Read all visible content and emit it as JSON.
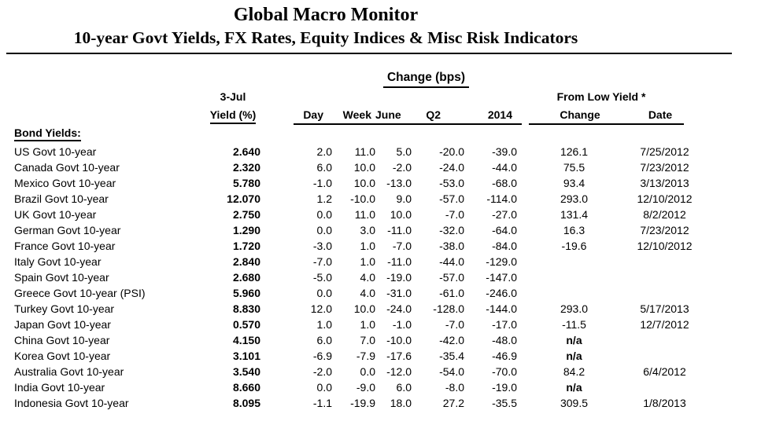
{
  "header": {
    "title": "Global Macro Monitor",
    "subtitle": "10-year Govt Yields, FX Rates, Equity Indices & Misc Risk Indicators"
  },
  "table": {
    "group_headers": {
      "as_of": "3-Jul",
      "change_bps": "Change (bps)",
      "from_low_yield": "From Low Yield *"
    },
    "columns": [
      "Yield (%)",
      "Day",
      "Week",
      "June",
      "Q2",
      "2014",
      "Change",
      "Date"
    ],
    "section_label": "Bond Yields:",
    "rows": [
      [
        "US Govt 10-year",
        "2.640",
        "2.0",
        "11.0",
        "5.0",
        "-20.0",
        "-39.0",
        "126.1",
        "7/25/2012"
      ],
      [
        "Canada Govt 10-year",
        "2.320",
        "6.0",
        "10.0",
        "-2.0",
        "-24.0",
        "-44.0",
        "75.5",
        "7/23/2012"
      ],
      [
        "Mexico Govt 10-year",
        "5.780",
        "-1.0",
        "10.0",
        "-13.0",
        "-53.0",
        "-68.0",
        "93.4",
        "3/13/2013"
      ],
      [
        "Brazil Govt 10-year",
        "12.070",
        "1.2",
        "-10.0",
        "9.0",
        "-57.0",
        "-114.0",
        "293.0",
        "12/10/2012"
      ],
      [
        "UK Govt 10-year",
        "2.750",
        "0.0",
        "11.0",
        "10.0",
        "-7.0",
        "-27.0",
        "131.4",
        "8/2/2012"
      ],
      [
        "German Govt 10-year",
        "1.290",
        "0.0",
        "3.0",
        "-11.0",
        "-32.0",
        "-64.0",
        "16.3",
        "7/23/2012"
      ],
      [
        "France Govt 10-year",
        "1.720",
        "-3.0",
        "1.0",
        "-7.0",
        "-38.0",
        "-84.0",
        "-19.6",
        "12/10/2012"
      ],
      [
        "Italy Govt 10-year",
        "2.840",
        "-7.0",
        "1.0",
        "-11.0",
        "-44.0",
        "-129.0",
        "",
        ""
      ],
      [
        "Spain Govt 10-year",
        "2.680",
        "-5.0",
        "4.0",
        "-19.0",
        "-57.0",
        "-147.0",
        "",
        ""
      ],
      [
        "Greece Govt 10-year (PSI)",
        "5.960",
        "0.0",
        "4.0",
        "-31.0",
        "-61.0",
        "-246.0",
        "",
        ""
      ],
      [
        "Turkey Govt 10-year",
        "8.830",
        "12.0",
        "10.0",
        "-24.0",
        "-128.0",
        "-144.0",
        "293.0",
        "5/17/2013"
      ],
      [
        "Japan Govt 10-year",
        "0.570",
        "1.0",
        "1.0",
        "-1.0",
        "-7.0",
        "-17.0",
        "-11.5",
        "12/7/2012"
      ],
      [
        "China Govt 10-year",
        "4.150",
        "6.0",
        "7.0",
        "-10.0",
        "-42.0",
        "-48.0",
        "n/a",
        ""
      ],
      [
        "Korea Govt 10-year",
        "3.101",
        "-6.9",
        "-7.9",
        "-17.6",
        "-35.4",
        "-46.9",
        "n/a",
        ""
      ],
      [
        "Australia Govt 10-year",
        "3.540",
        "-2.0",
        "0.0",
        "-12.0",
        "-54.0",
        "-70.0",
        "84.2",
        "6/4/2012"
      ],
      [
        "India Govt 10-year",
        "8.660",
        "0.0",
        "-9.0",
        "6.0",
        "-8.0",
        "-19.0",
        "n/a",
        ""
      ],
      [
        "Indonesia Govt 10-year",
        "8.095",
        "-1.1",
        "-19.9",
        "18.0",
        "27.2",
        "-35.5",
        "309.5",
        "1/8/2013"
      ]
    ]
  },
  "colors": {
    "text": "#000000",
    "rule": "#000000",
    "background": "#ffffff"
  }
}
